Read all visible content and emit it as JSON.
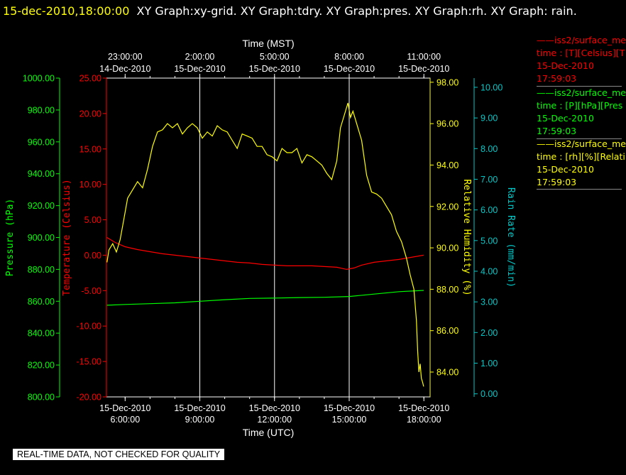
{
  "header": {
    "timestamp": "15-dec-2010,18:00:00",
    "graphs": "XY Graph:xy-grid.  XY Graph:tdry.  XY Graph:pres.  XY Graph:rh.  XY Graph: rain."
  },
  "legend": [
    {
      "line1": "iss2/surface_me",
      "line2": "time : [T][Celsius][T",
      "line3": "15-Dec-2010",
      "line4": "17:59:03",
      "color": "#ff0000"
    },
    {
      "line1": "iss2/surface_me",
      "line2": "time : [P][hPa][Pres",
      "line3": "15-Dec-2010",
      "line4": "17:59:03",
      "color": "#00ff00"
    },
    {
      "line1": "iss2/surface_me",
      "line2": "time : [rh][%][Relati",
      "line3": "15-Dec-2010",
      "line4": "17:59:03",
      "color": "#ffff00"
    }
  ],
  "notice": "REAL-TIME DATA, NOT CHECKED FOR QUALITY",
  "chart_data": {
    "type": "line",
    "x_range_utc_hours": [
      5.25,
      18.25
    ],
    "xlabel_bottom": "Time (UTC)",
    "xlabel_top": "Time (MST)",
    "bottom_ticks": [
      {
        "x": 6,
        "line1": "15-Dec-2010",
        "line2": "6:00:00"
      },
      {
        "x": 9,
        "line1": "15-Dec-2010",
        "line2": "9:00:00"
      },
      {
        "x": 12,
        "line1": "15-Dec-2010",
        "line2": "12:00:00"
      },
      {
        "x": 15,
        "line1": "15-Dec-2010",
        "line2": "15:00:00"
      },
      {
        "x": 18,
        "line1": "15-Dec-2010",
        "line2": "18:00:00"
      }
    ],
    "top_ticks": [
      {
        "x": 6,
        "line1": "23:00:00",
        "line2": "14-Dec-2010"
      },
      {
        "x": 9,
        "line1": "2:00:00",
        "line2": "15-Dec-2010"
      },
      {
        "x": 12,
        "line1": "5:00:00",
        "line2": "15-Dec-2010"
      },
      {
        "x": 15,
        "line1": "8:00:00",
        "line2": "15-Dec-2010"
      },
      {
        "x": 18,
        "line1": "11:00:00",
        "line2": "15-Dec-2010"
      }
    ],
    "grid_x": [
      9,
      12,
      15
    ],
    "axes": {
      "pressure": {
        "label": "Pressure (hPa)",
        "color": "#00ff00",
        "range": [
          800,
          1000
        ],
        "ticks": [
          "800.00",
          "820.00",
          "840.00",
          "860.00",
          "880.00",
          "900.00",
          "920.00",
          "940.00",
          "960.00",
          "980.00",
          "1000.00"
        ]
      },
      "temperature": {
        "label": "Temperature (Celsius)",
        "color": "#ff0000",
        "range": [
          -20,
          25
        ],
        "ticks": [
          "-20.00",
          "-15.00",
          "-10.00",
          "-5.00",
          "0.00",
          "5.00",
          "10.00",
          "15.00",
          "20.00",
          "25.00"
        ]
      },
      "rh": {
        "label": "Relative Humidity (%)",
        "color": "#ffff00",
        "range": [
          82.8,
          98.2
        ],
        "ticks": [
          "84.00",
          "86.00",
          "88.00",
          "90.00",
          "92.00",
          "94.00",
          "96.00",
          "98.00"
        ]
      },
      "rain": {
        "label": "Rain Rate (mm/min)",
        "color": "#00c8c8",
        "range": [
          -0.1,
          10.3
        ],
        "ticks": [
          "0.00",
          "1.00",
          "2.00",
          "3.00",
          "4.00",
          "5.00",
          "6.00",
          "7.00",
          "8.00",
          "9.00",
          "10.00"
        ]
      }
    },
    "series": [
      {
        "axis": "temperature",
        "color": "#ff0000",
        "x": [
          5.27,
          5.6,
          6.0,
          6.5,
          7.0,
          7.5,
          8.0,
          8.5,
          9.0,
          9.5,
          10.0,
          10.5,
          11.0,
          11.5,
          12.0,
          12.5,
          13.0,
          13.5,
          14.0,
          14.5,
          14.9,
          15.2,
          15.5,
          16.0,
          16.5,
          17.0,
          17.5,
          17.99
        ],
        "y": [
          2.5,
          1.8,
          1.2,
          0.8,
          0.5,
          0.2,
          0.0,
          -0.2,
          -0.4,
          -0.6,
          -0.8,
          -1.0,
          -1.1,
          -1.3,
          -1.4,
          -1.5,
          -1.5,
          -1.5,
          -1.6,
          -1.7,
          -2.0,
          -1.8,
          -1.4,
          -1.0,
          -0.8,
          -0.6,
          -0.3,
          0.0
        ]
      },
      {
        "axis": "pressure",
        "color": "#00ff00",
        "x": [
          5.27,
          6.0,
          7.0,
          8.0,
          9.0,
          10.0,
          11.0,
          12.0,
          13.0,
          14.0,
          15.0,
          16.0,
          17.0,
          17.99
        ],
        "y": [
          857.5,
          858.0,
          858.5,
          859.0,
          860.0,
          861.0,
          861.8,
          862.0,
          862.3,
          862.5,
          863.0,
          864.5,
          866.0,
          866.8
        ]
      },
      {
        "axis": "rh",
        "color": "#ffff00",
        "x": [
          5.27,
          5.35,
          5.5,
          5.65,
          5.8,
          5.95,
          6.1,
          6.3,
          6.5,
          6.7,
          6.9,
          7.1,
          7.3,
          7.5,
          7.7,
          7.9,
          8.1,
          8.3,
          8.5,
          8.7,
          8.9,
          9.1,
          9.3,
          9.5,
          9.7,
          9.9,
          10.1,
          10.3,
          10.5,
          10.7,
          10.9,
          11.1,
          11.3,
          11.5,
          11.7,
          11.9,
          12.1,
          12.3,
          12.5,
          12.7,
          12.9,
          13.1,
          13.3,
          13.5,
          13.7,
          13.9,
          14.1,
          14.3,
          14.5,
          14.65,
          14.8,
          14.95,
          15.05,
          15.15,
          15.3,
          15.5,
          15.7,
          15.9,
          16.1,
          16.3,
          16.5,
          16.7,
          16.9,
          17.1,
          17.3,
          17.45,
          17.6,
          17.7,
          17.75,
          17.8,
          17.85,
          17.9,
          17.95,
          17.99
        ],
        "y": [
          89.3,
          89.9,
          90.2,
          89.8,
          90.4,
          91.4,
          92.4,
          92.8,
          93.2,
          92.9,
          93.8,
          94.9,
          95.6,
          95.7,
          96.0,
          95.8,
          96.0,
          95.5,
          95.8,
          96.0,
          95.8,
          95.3,
          95.6,
          95.4,
          95.9,
          95.7,
          95.6,
          95.2,
          94.8,
          95.5,
          95.4,
          95.3,
          94.9,
          94.9,
          94.5,
          94.4,
          94.2,
          94.8,
          94.6,
          94.6,
          94.8,
          94.1,
          94.5,
          94.4,
          94.2,
          94.0,
          93.6,
          93.3,
          94.2,
          95.8,
          96.4,
          97.0,
          96.3,
          96.6,
          96.0,
          95.2,
          93.5,
          92.7,
          92.6,
          92.4,
          92.0,
          91.6,
          90.8,
          90.3,
          89.5,
          88.7,
          88.0,
          86.5,
          85.0,
          84.0,
          84.4,
          83.7,
          83.5,
          83.3
        ]
      },
      {
        "axis": "rain",
        "color": "#00c8c8",
        "x": [],
        "y": []
      }
    ]
  }
}
